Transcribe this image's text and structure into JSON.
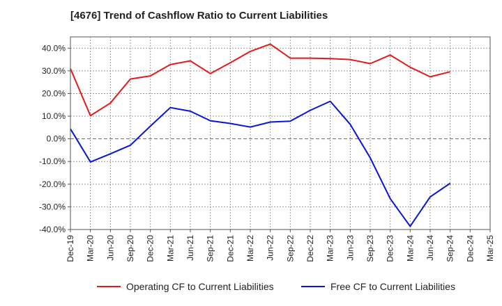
{
  "chart_data": {
    "type": "line",
    "title": "[4676]  Trend of Cashflow Ratio to Current Liabilities",
    "xlabel": "",
    "ylabel": "",
    "x": [
      "Dec-19",
      "Mar-20",
      "Jun-20",
      "Sep-20",
      "Dec-20",
      "Mar-21",
      "Jun-21",
      "Sep-21",
      "Dec-21",
      "Mar-22",
      "Jun-22",
      "Sep-22",
      "Dec-22",
      "Mar-23",
      "Jun-23",
      "Sep-23",
      "Dec-23",
      "Mar-24",
      "Jun-24",
      "Sep-24",
      "Dec-24",
      "Mar-25"
    ],
    "ylim": [
      -40,
      45
    ],
    "y_ticks": [
      -40,
      -30,
      -20,
      -10,
      0,
      10,
      20,
      30,
      40
    ],
    "y_tick_labels": [
      "-40.0%",
      "-30.0%",
      "-20.0%",
      "-10.0%",
      "0.0%",
      "10.0%",
      "20.0%",
      "30.0%",
      "40.0%"
    ],
    "grid": true,
    "legend_position": "bottom",
    "series": [
      {
        "name": "Operating CF to Current Liabilities",
        "color": "#e31a1c",
        "points": [
          [
            "Dec-19",
            31.0
          ],
          [
            "Mar-20",
            10.2
          ],
          [
            "Jun-20",
            15.8
          ],
          [
            "Sep-20",
            26.4
          ],
          [
            "Dec-20",
            27.8
          ],
          [
            "Mar-21",
            32.8
          ],
          [
            "Jun-21",
            34.4
          ],
          [
            "Sep-21",
            28.8
          ],
          [
            "Dec-21",
            33.6
          ],
          [
            "Mar-22",
            38.6
          ],
          [
            "Jun-22",
            41.8
          ],
          [
            "Sep-22",
            35.6
          ],
          [
            "Dec-22",
            35.6
          ],
          [
            "Mar-23",
            35.4
          ],
          [
            "Jun-23",
            35.0
          ],
          [
            "Sep-23",
            33.2
          ],
          [
            "Dec-23",
            37.0
          ],
          [
            "Mar-24",
            31.6
          ],
          [
            "Jun-24",
            27.4
          ],
          [
            "Sep-24",
            29.6
          ]
        ]
      },
      {
        "name": "Free CF to Current Liabilities",
        "color": "#0a14d8",
        "points": [
          [
            "Dec-19",
            4.4
          ],
          [
            "Mar-20",
            -10.2
          ],
          [
            "Jun-20",
            -6.6
          ],
          [
            "Sep-20",
            -2.8
          ],
          [
            "Dec-20",
            5.6
          ],
          [
            "Mar-21",
            13.8
          ],
          [
            "Jun-21",
            12.2
          ],
          [
            "Sep-21",
            8.0
          ],
          [
            "Dec-21",
            6.8
          ],
          [
            "Mar-22",
            5.2
          ],
          [
            "Jun-22",
            7.4
          ],
          [
            "Sep-22",
            7.8
          ],
          [
            "Dec-22",
            12.6
          ],
          [
            "Mar-23",
            16.6
          ],
          [
            "Jun-23",
            6.4
          ],
          [
            "Sep-23",
            -8.4
          ],
          [
            "Dec-23",
            -26.4
          ],
          [
            "Mar-24",
            -38.6
          ],
          [
            "Jun-24",
            -25.6
          ],
          [
            "Sep-24",
            -19.6
          ]
        ]
      }
    ]
  }
}
